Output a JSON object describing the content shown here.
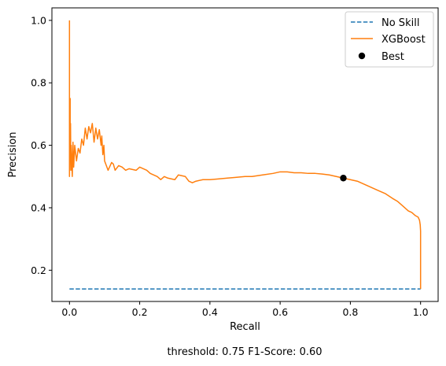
{
  "chart_data": {
    "type": "line",
    "xlabel": "Recall",
    "ylabel": "Precision",
    "xlim": [
      -0.05,
      1.05
    ],
    "ylim": [
      0.1,
      1.04
    ],
    "xticks": [
      "0.0",
      "0.2",
      "0.4",
      "0.6",
      "0.8",
      "1.0"
    ],
    "yticks": [
      "0.2",
      "0.4",
      "0.6",
      "0.8",
      "1.0"
    ],
    "grid": false,
    "legend_position": "top-right",
    "caption": "threshold: 0.75  F1-Score: 0.60",
    "series": [
      {
        "name": "No Skill",
        "style": "dashed",
        "color": "#1f77b4",
        "x": [
          0,
          1
        ],
        "y": [
          0.14,
          0.14
        ]
      },
      {
        "name": "XGBoost",
        "style": "solid",
        "color": "#ff7f0e",
        "x": [
          1.0,
          1.0,
          0.999,
          0.997,
          0.993,
          0.985,
          0.975,
          0.965,
          0.95,
          0.935,
          0.92,
          0.9,
          0.88,
          0.86,
          0.84,
          0.82,
          0.8,
          0.78,
          0.76,
          0.74,
          0.72,
          0.7,
          0.68,
          0.66,
          0.64,
          0.62,
          0.6,
          0.58,
          0.55,
          0.52,
          0.5,
          0.47,
          0.45,
          0.42,
          0.4,
          0.38,
          0.36,
          0.35,
          0.34,
          0.33,
          0.31,
          0.3,
          0.28,
          0.27,
          0.26,
          0.25,
          0.23,
          0.22,
          0.2,
          0.19,
          0.17,
          0.16,
          0.15,
          0.14,
          0.13,
          0.125,
          0.12,
          0.11,
          0.105,
          0.1,
          0.098,
          0.095,
          0.092,
          0.09,
          0.085,
          0.08,
          0.075,
          0.07,
          0.065,
          0.06,
          0.055,
          0.05,
          0.045,
          0.04,
          0.035,
          0.03,
          0.025,
          0.02,
          0.015,
          0.012,
          0.01,
          0.008,
          0.006,
          0.005,
          0.004,
          0.003,
          0.003,
          0.002,
          0.002,
          0.001,
          0.001,
          0.0,
          0.0,
          0.0
        ],
        "y": [
          0.14,
          0.325,
          0.345,
          0.36,
          0.37,
          0.375,
          0.385,
          0.39,
          0.405,
          0.42,
          0.43,
          0.445,
          0.455,
          0.465,
          0.475,
          0.485,
          0.49,
          0.495,
          0.5,
          0.505,
          0.508,
          0.51,
          0.51,
          0.512,
          0.512,
          0.515,
          0.515,
          0.51,
          0.505,
          0.5,
          0.5,
          0.497,
          0.495,
          0.492,
          0.49,
          0.49,
          0.485,
          0.48,
          0.485,
          0.5,
          0.505,
          0.49,
          0.495,
          0.5,
          0.49,
          0.5,
          0.51,
          0.52,
          0.53,
          0.52,
          0.525,
          0.52,
          0.53,
          0.535,
          0.52,
          0.54,
          0.545,
          0.52,
          0.535,
          0.55,
          0.6,
          0.57,
          0.63,
          0.6,
          0.65,
          0.62,
          0.655,
          0.61,
          0.67,
          0.64,
          0.66,
          0.62,
          0.655,
          0.6,
          0.62,
          0.575,
          0.59,
          0.55,
          0.6,
          0.53,
          0.61,
          0.5,
          0.57,
          0.6,
          0.52,
          0.67,
          0.57,
          0.61,
          0.75,
          0.55,
          0.6,
          0.5,
          0.75,
          1.0
        ]
      }
    ],
    "marker": {
      "name": "Best",
      "x": 0.78,
      "y": 0.495,
      "color": "#000000"
    }
  }
}
